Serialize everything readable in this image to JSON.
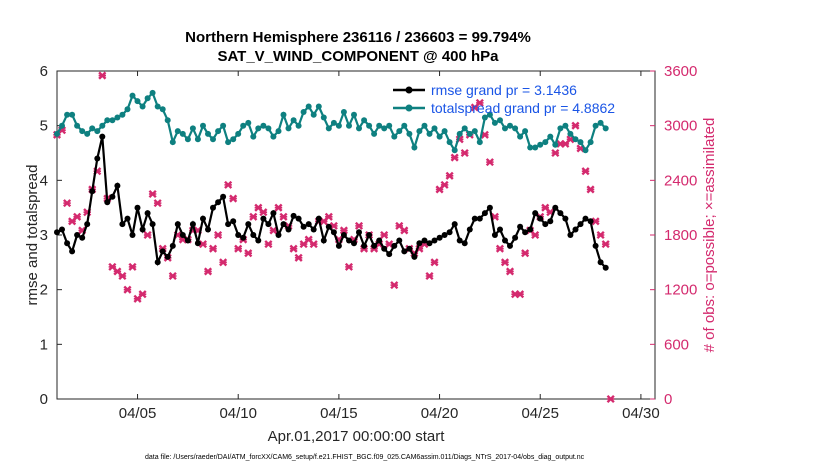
{
  "chart_data": {
    "type": "line",
    "title": "Northern Hemisphere 236116 / 236603 = 99.794%",
    "subtitle": "SAT_V_WIND_COMPONENT @ 400 hPa",
    "xlabel": "Apr.01,2017 00:00:00 start",
    "ylabel_left": "rmse and totalspread",
    "ylabel_right": "# of obs: o=possible; ×=assimilated",
    "xlim": [
      1,
      30.7
    ],
    "ylim_left": [
      0,
      6
    ],
    "ylim_right": [
      0,
      3600
    ],
    "x_ticks": [
      5,
      10,
      15,
      20,
      25,
      30
    ],
    "x_tick_labels": [
      "04/05",
      "04/10",
      "04/15",
      "04/20",
      "04/25",
      "04/30"
    ],
    "y_ticks_left": [
      0,
      1,
      2,
      3,
      4,
      5,
      6
    ],
    "y_tick_labels_left": [
      "0",
      "1",
      "2",
      "3",
      "4",
      "5",
      "6"
    ],
    "y_ticks_right": [
      0,
      600,
      1200,
      1800,
      2400,
      3000,
      3600
    ],
    "y_tick_labels_right": [
      "0",
      "600",
      "1200",
      "1800",
      "2400",
      "3000",
      "3600"
    ],
    "series": [
      {
        "name": "rmse grand pr = 3.1436",
        "axis": "left",
        "color": "#000000",
        "x_start": 1.0,
        "x_step": 0.25,
        "values": [
          3.05,
          3.1,
          2.85,
          2.7,
          3.0,
          2.95,
          3.2,
          3.8,
          4.4,
          4.8,
          3.6,
          3.7,
          3.9,
          3.2,
          3.3,
          3.0,
          3.5,
          3.1,
          3.4,
          3.2,
          2.5,
          2.7,
          2.6,
          2.8,
          3.2,
          3.0,
          2.9,
          3.2,
          2.85,
          3.3,
          3.1,
          3.5,
          3.6,
          3.7,
          3.2,
          3.25,
          3.0,
          2.95,
          3.2,
          3.0,
          2.9,
          3.3,
          3.2,
          3.4,
          3.0,
          3.2,
          3.1,
          3.35,
          3.3,
          3.15,
          3.2,
          3.1,
          3.3,
          2.9,
          3.15,
          3.05,
          2.8,
          3.0,
          2.9,
          2.85,
          3.05,
          2.8,
          3.0,
          2.8,
          2.9,
          2.75,
          2.65,
          2.8,
          2.9,
          2.7,
          2.75,
          2.6,
          2.85,
          2.9,
          2.85,
          2.9,
          2.95,
          3.0,
          3.05,
          3.2,
          2.9,
          2.85,
          3.1,
          3.3,
          3.3,
          3.4,
          3.5,
          3.0,
          3.1,
          2.9,
          2.8,
          2.95,
          3.15,
          3.05,
          3.1,
          3.4,
          3.3,
          3.2,
          3.25,
          3.5,
          3.4,
          3.3,
          3.0,
          3.1,
          3.2,
          3.3,
          3.25,
          2.8,
          2.5,
          2.4
        ],
        "label": "rmse grand pr = 3.1436"
      },
      {
        "name": "totalspread grand pr = 4.8862",
        "axis": "left",
        "color": "#0e8080",
        "x_start": 1.0,
        "x_step": 0.25,
        "values": [
          4.85,
          5.0,
          5.2,
          5.2,
          5.0,
          4.9,
          4.85,
          4.95,
          4.9,
          5.0,
          5.1,
          5.1,
          5.15,
          5.2,
          5.3,
          5.55,
          5.45,
          5.35,
          5.5,
          5.6,
          5.35,
          5.3,
          5.1,
          4.7,
          4.9,
          4.85,
          4.75,
          4.95,
          4.75,
          5.0,
          4.85,
          4.75,
          4.9,
          5.0,
          4.7,
          4.75,
          4.85,
          5.0,
          5.05,
          4.8,
          4.95,
          5.0,
          4.95,
          4.8,
          4.9,
          5.2,
          4.95,
          5.1,
          5.0,
          5.25,
          5.35,
          5.2,
          5.35,
          5.15,
          4.95,
          5.05,
          5.0,
          5.25,
          5.0,
          5.2,
          4.95,
          5.1,
          5.0,
          4.85,
          5.0,
          4.95,
          5.0,
          4.8,
          4.9,
          5.0,
          4.85,
          4.6,
          4.9,
          5.0,
          4.85,
          4.95,
          4.8,
          4.9,
          4.7,
          4.55,
          4.85,
          4.95,
          4.85,
          4.9,
          4.7,
          5.15,
          5.2,
          5.05,
          5.1,
          4.95,
          5.0,
          4.95,
          4.8,
          4.9,
          4.6,
          4.6,
          4.65,
          4.7,
          4.8,
          4.65,
          4.95,
          5.0,
          4.85,
          4.75,
          4.7,
          4.55,
          4.7,
          5.0,
          5.05,
          4.95
        ],
        "label": "totalspread grand pr = 4.8862"
      },
      {
        "name": "# of obs assimilated",
        "axis": "right",
        "color": "#d42a6e",
        "x_start": 1.0,
        "x_step": 0.25,
        "values": [
          2900,
          2950,
          2150,
          1950,
          2000,
          1850,
          2050,
          2300,
          2500,
          3550,
          2200,
          1450,
          1400,
          1350,
          1200,
          1450,
          1100,
          1150,
          1800,
          2250,
          2150,
          1650,
          1550,
          1350,
          1800,
          1750,
          1750,
          1850,
          1850,
          1700,
          1400,
          1650,
          1800,
          1500,
          2350,
          2200,
          1650,
          1750,
          1600,
          2000,
          2100,
          2050,
          1700,
          1850,
          2100,
          2000,
          1900,
          1650,
          1550,
          1700,
          1750,
          1700,
          1950,
          1950,
          2000,
          1900,
          1750,
          1850,
          1450,
          1750,
          1900,
          1650,
          1800,
          1650,
          1700,
          1800,
          1700,
          1250,
          1900,
          1850,
          1650,
          1600,
          1650,
          1700,
          1350,
          1500,
          2300,
          2350,
          2450,
          2650,
          2850,
          2700,
          2900,
          3200,
          3250,
          2900,
          2600,
          2000,
          1650,
          1500,
          1400,
          1150,
          1150,
          1600,
          1850,
          1800,
          2000,
          2100,
          2050,
          2700,
          2800,
          2800,
          2850,
          3000,
          2750,
          2500,
          2300,
          1950,
          1800,
          1700,
          0
        ]
      }
    ]
  },
  "footnote": "data file: /Users/raeder/DAI/ATM_forcXX/CAM6_setup/f.e21.FHIST_BGC.f09_025.CAM6assim.011/Diags_NTrS_2017-04/obs_diag_output.nc"
}
